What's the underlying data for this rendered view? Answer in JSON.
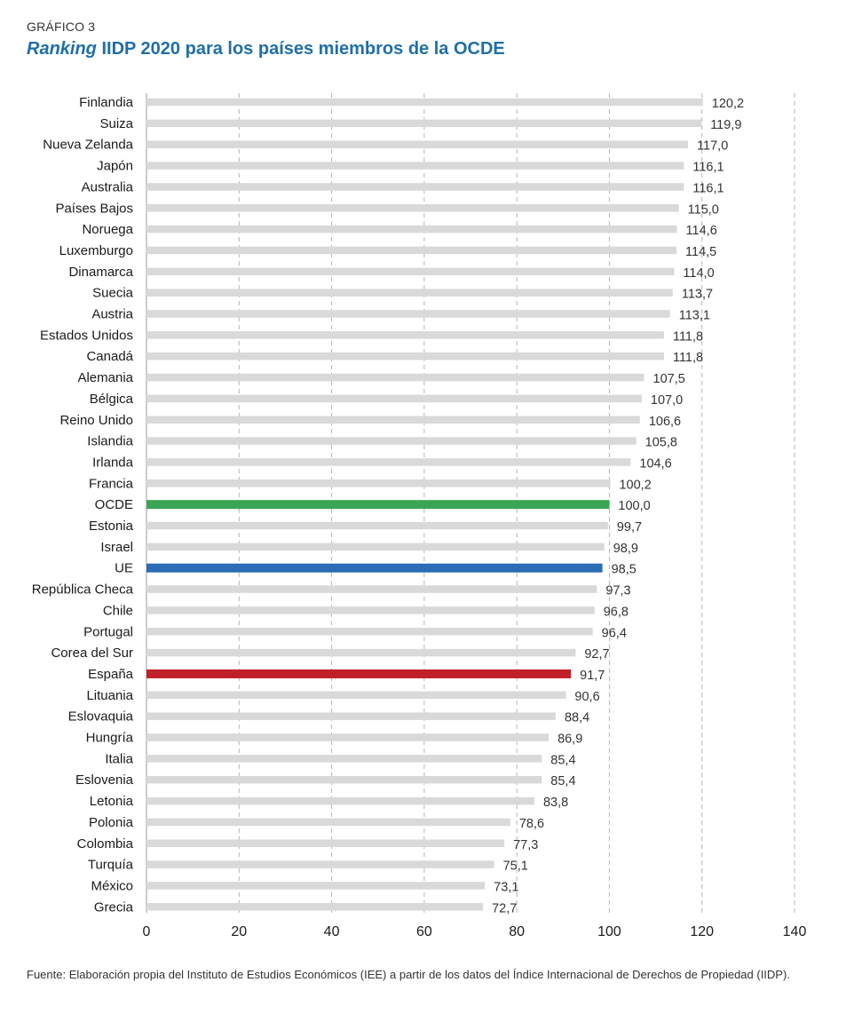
{
  "header": {
    "kicker": "GRÁFICO 3",
    "title_italic": "Ranking",
    "title_rest": " IIDP 2020 para los países miembros de la OCDE"
  },
  "footer": {
    "source": "Fuente: Elaboración propia del Instituto de Estudios Económicos (IEE) a partir de los datos del Índice Internacional de Derechos de Propiedad (IIDP)."
  },
  "chart_data": {
    "type": "bar",
    "orientation": "horizontal",
    "categories": [
      "Finlandia",
      "Suiza",
      "Nueva Zelanda",
      "Japón",
      "Australia",
      "Países Bajos",
      "Noruega",
      "Luxemburgo",
      "Dinamarca",
      "Suecia",
      "Austria",
      "Estados Unidos",
      "Canadá",
      "Alemania",
      "Bélgica",
      "Reino Unido",
      "Islandia",
      "Irlanda",
      "Francia",
      "OCDE",
      "Estonia",
      "Israel",
      "UE",
      "República Checa",
      "Chile",
      "Portugal",
      "Corea del Sur",
      "España",
      "Lituania",
      "Eslovaquia",
      "Hungría",
      "Italia",
      "Eslovenia",
      "Letonia",
      "Polonia",
      "Colombia",
      "Turquía",
      "México",
      "Grecia"
    ],
    "values": [
      120.2,
      119.9,
      117.0,
      116.1,
      116.1,
      115.0,
      114.6,
      114.5,
      114.0,
      113.7,
      113.1,
      111.8,
      111.8,
      107.5,
      107.0,
      106.6,
      105.8,
      104.6,
      100.2,
      100.0,
      99.7,
      98.9,
      98.5,
      97.3,
      96.8,
      96.4,
      92.7,
      91.7,
      90.6,
      88.4,
      86.9,
      85.4,
      85.4,
      83.8,
      78.6,
      77.3,
      75.1,
      73.1,
      72.7
    ],
    "value_labels": [
      "120,2",
      "119,9",
      "117,0",
      "116,1",
      "116,1",
      "115,0",
      "114,6",
      "114,5",
      "114,0",
      "113,7",
      "113,1",
      "111,8",
      "111,8",
      "107,5",
      "107,0",
      "106,6",
      "105,8",
      "104,6",
      "100,2",
      "100,0",
      "99,7",
      "98,9",
      "98,5",
      "97,3",
      "96,8",
      "96,4",
      "92,7",
      "91,7",
      "90,6",
      "88,4",
      "86,9",
      "85,4",
      "85,4",
      "83,8",
      "78,6",
      "77,3",
      "75,1",
      "73,1",
      "72,7"
    ],
    "xlim": [
      0,
      140
    ],
    "xticks": [
      0,
      20,
      40,
      60,
      80,
      100,
      120,
      140
    ],
    "grid": "vertical dashed",
    "colors": {
      "default": "#d9d9d9",
      "highlight": {
        "OCDE": "#3aa655",
        "UE": "#2a6db5",
        "España": "#c0202a"
      },
      "grid": "#b5b5b5",
      "axis": "#999999"
    }
  }
}
